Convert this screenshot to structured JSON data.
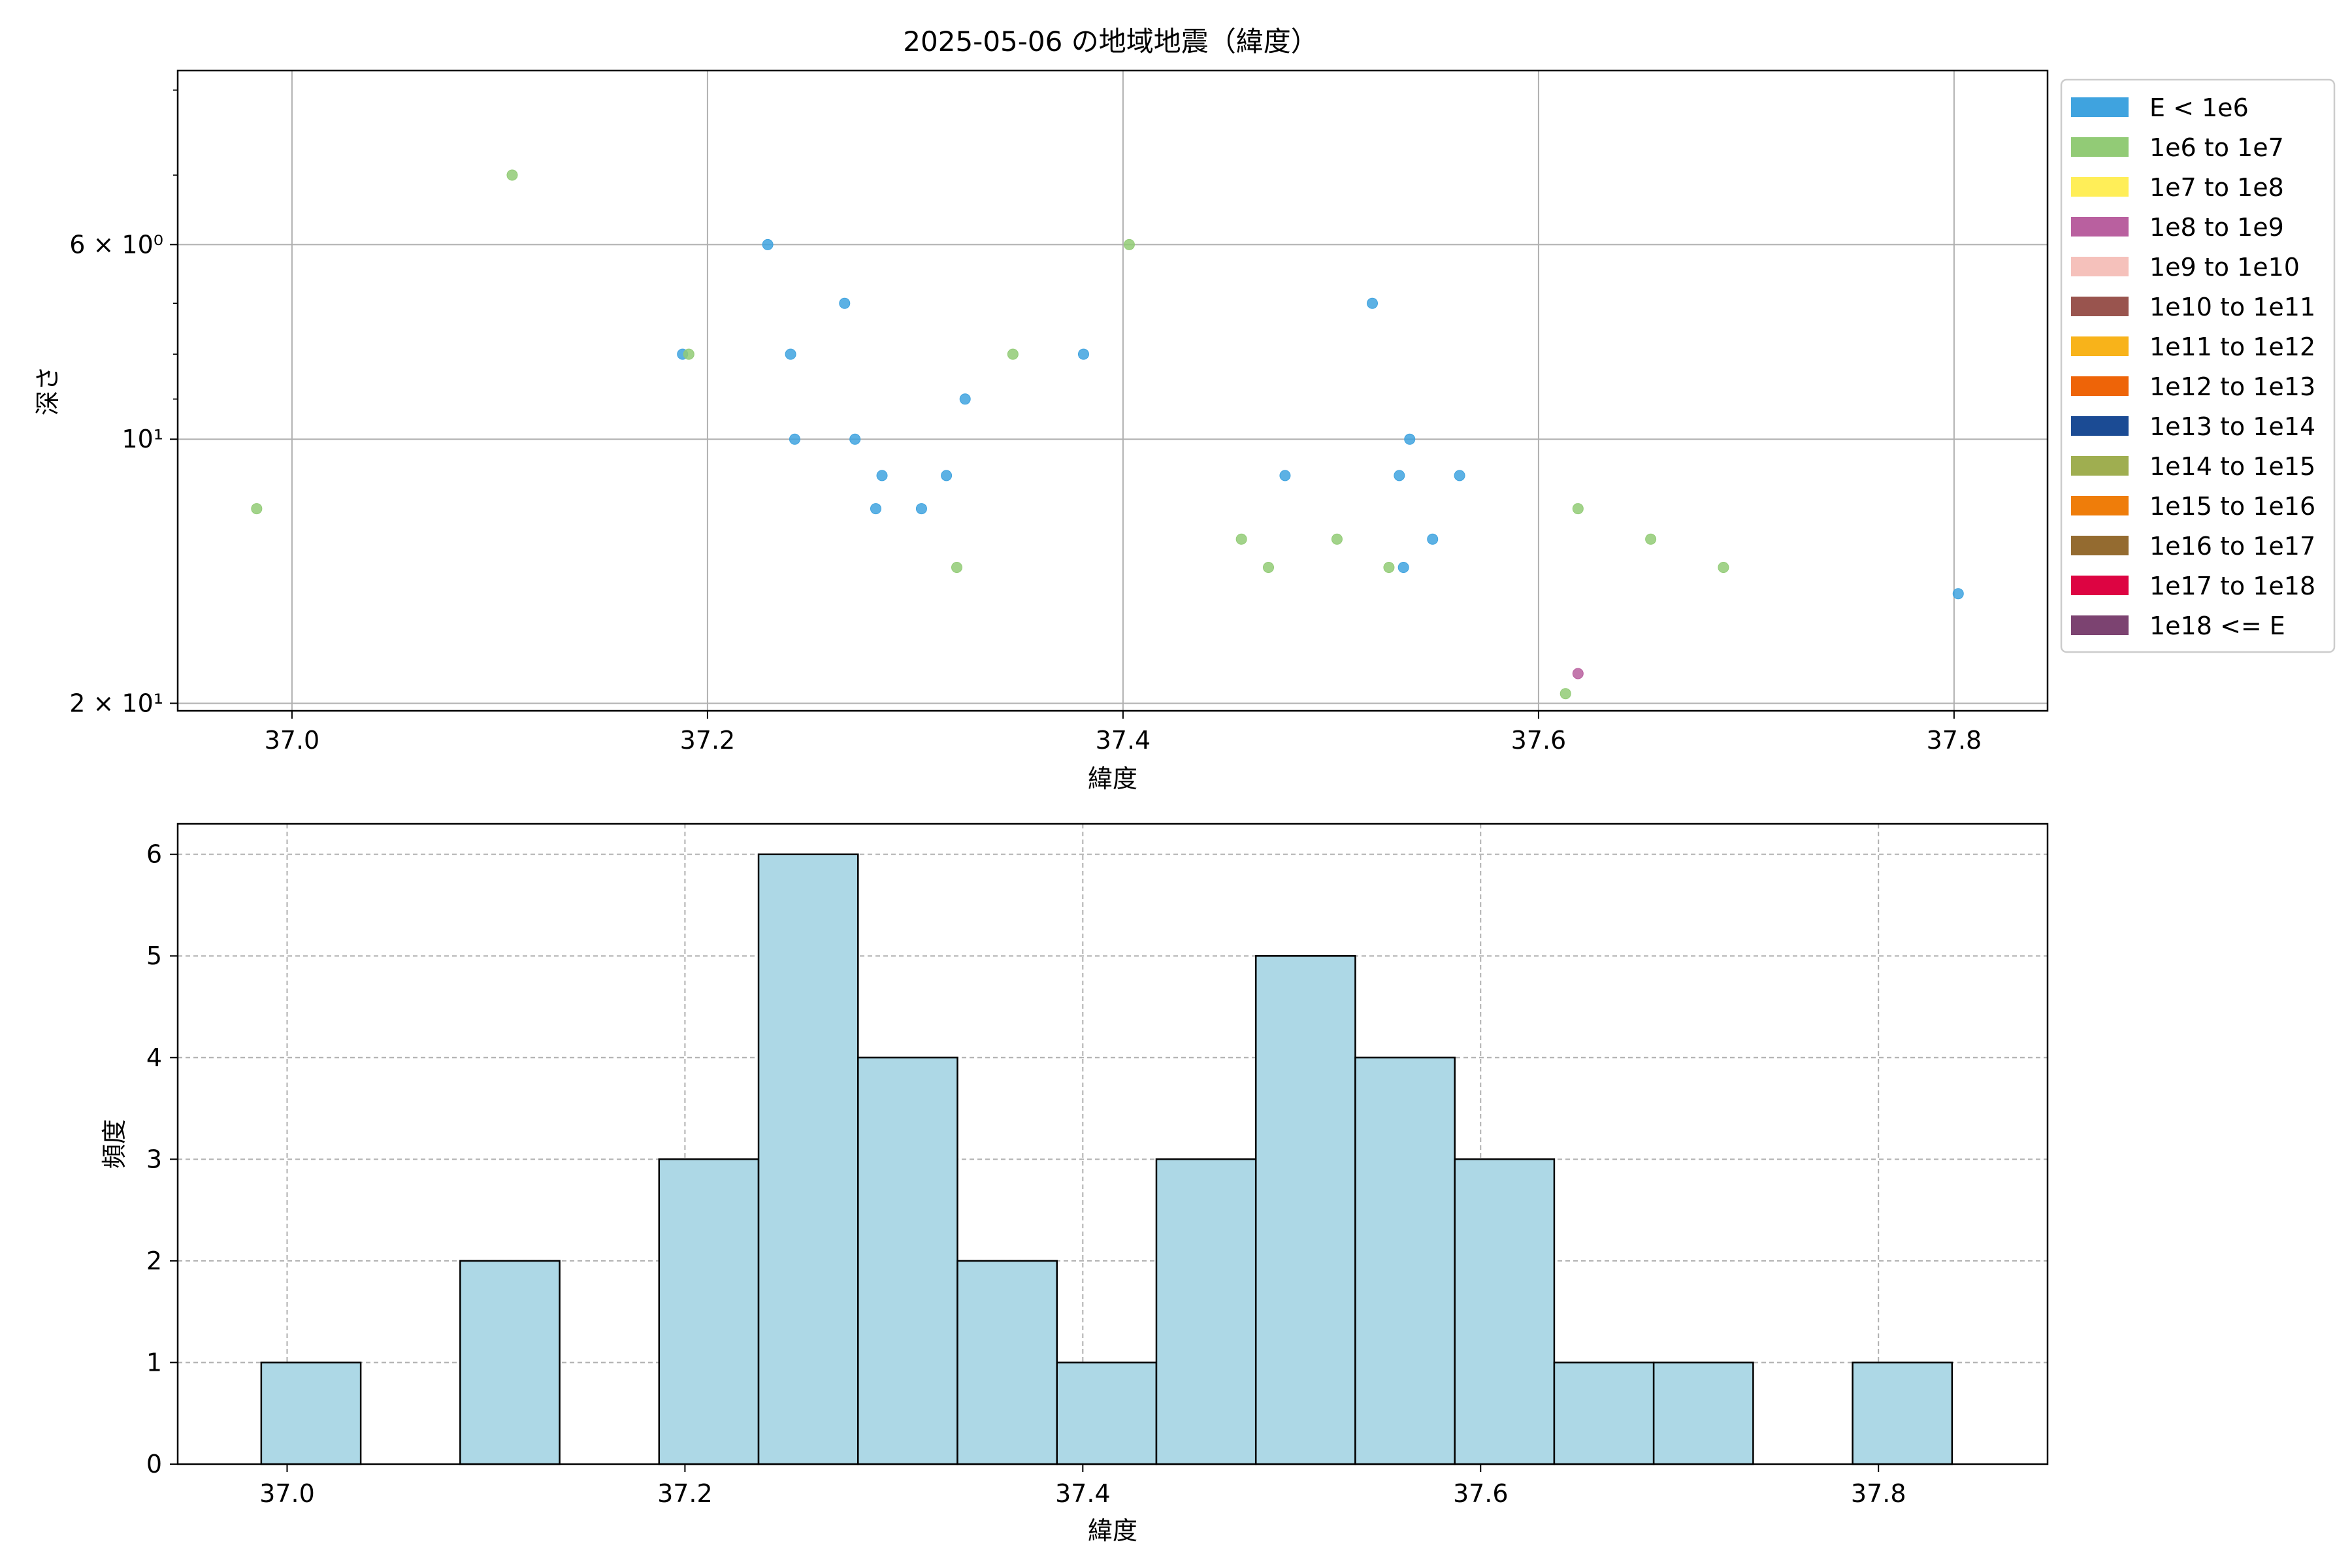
{
  "chart_data": [
    {
      "type": "scatter",
      "title": "2025-05-06 の地域地震（緯度）",
      "xlabel": "緯度",
      "ylabel": "深さ",
      "xlim": [
        36.945,
        37.845
      ],
      "ylim": [
        20.4,
        3.8
      ],
      "y_scale": "log",
      "y_inverted": true,
      "grid": true,
      "x_ticks": [
        37.0,
        37.2,
        37.4,
        37.6,
        37.8
      ],
      "x_tick_labels": [
        "37.0",
        "37.2",
        "37.4",
        "37.6",
        "37.8"
      ],
      "y_ticks": [
        6,
        10,
        20
      ],
      "y_tick_labels": [
        "6 × 10⁰",
        "10¹",
        "2 × 10¹"
      ],
      "legend": {
        "placement": "outside-right",
        "entries": [
          {
            "label": "E < 1e6",
            "color": "#3fa3df"
          },
          {
            "label": "1e6 to 1e7",
            "color": "#92cb76"
          },
          {
            "label": "1e7 to 1e8",
            "color": "#ffee58"
          },
          {
            "label": "1e8 to 1e9",
            "color": "#b9609f"
          },
          {
            "label": "1e9 to 1e10",
            "color": "#f5c1bb"
          },
          {
            "label": "1e10 to 1e11",
            "color": "#99544e"
          },
          {
            "label": "1e11 to 1e12",
            "color": "#f8b31a"
          },
          {
            "label": "1e12 to 1e13",
            "color": "#ee6408"
          },
          {
            "label": "1e13 to 1e14",
            "color": "#1b4b94"
          },
          {
            "label": "1e14 to 1e15",
            "color": "#9fae50"
          },
          {
            "label": "1e15 to 1e16",
            "color": "#ef7d0a"
          },
          {
            "label": "1e16 to 1e17",
            "color": "#946b30"
          },
          {
            "label": "1e17 to 1e18",
            "color": "#dd0442"
          },
          {
            "label": "1e18 <= E",
            "color": "#7c4371"
          }
        ]
      },
      "series": [
        {
          "category": 0,
          "points": [
            {
              "x": 37.188,
              "y": 8
            },
            {
              "x": 37.229,
              "y": 6
            },
            {
              "x": 37.24,
              "y": 8
            },
            {
              "x": 37.242,
              "y": 10
            },
            {
              "x": 37.266,
              "y": 7
            },
            {
              "x": 37.271,
              "y": 10
            },
            {
              "x": 37.281,
              "y": 12
            },
            {
              "x": 37.284,
              "y": 11
            },
            {
              "x": 37.303,
              "y": 12
            },
            {
              "x": 37.315,
              "y": 11
            },
            {
              "x": 37.324,
              "y": 9
            },
            {
              "x": 37.381,
              "y": 8
            },
            {
              "x": 37.478,
              "y": 11
            },
            {
              "x": 37.52,
              "y": 7
            },
            {
              "x": 37.533,
              "y": 11
            },
            {
              "x": 37.535,
              "y": 14
            },
            {
              "x": 37.538,
              "y": 10
            },
            {
              "x": 37.549,
              "y": 13
            },
            {
              "x": 37.562,
              "y": 11
            },
            {
              "x": 37.802,
              "y": 15
            }
          ]
        },
        {
          "category": 1,
          "points": [
            {
              "x": 36.983,
              "y": 12
            },
            {
              "x": 37.106,
              "y": 5
            },
            {
              "x": 37.191,
              "y": 8
            },
            {
              "x": 37.32,
              "y": 14
            },
            {
              "x": 37.347,
              "y": 8
            },
            {
              "x": 37.403,
              "y": 6
            },
            {
              "x": 37.457,
              "y": 13
            },
            {
              "x": 37.47,
              "y": 14
            },
            {
              "x": 37.503,
              "y": 13
            },
            {
              "x": 37.528,
              "y": 14
            },
            {
              "x": 37.613,
              "y": 19.5
            },
            {
              "x": 37.619,
              "y": 12
            },
            {
              "x": 37.654,
              "y": 13
            },
            {
              "x": 37.689,
              "y": 14
            }
          ]
        },
        {
          "category": 3,
          "points": [
            {
              "x": 37.619,
              "y": 18.5
            }
          ]
        }
      ]
    },
    {
      "type": "bar",
      "title": "",
      "xlabel": "緯度",
      "ylabel": "頻度",
      "xlim": [
        36.945,
        37.885
      ],
      "ylim": [
        0,
        6.3
      ],
      "grid": true,
      "x_ticks": [
        37.0,
        37.2,
        37.4,
        37.6,
        37.8
      ],
      "x_tick_labels": [
        "37.0",
        "37.2",
        "37.4",
        "37.6",
        "37.8"
      ],
      "y_ticks": [
        0,
        1,
        2,
        3,
        4,
        5,
        6
      ],
      "y_tick_labels": [
        "0",
        "1",
        "2",
        "3",
        "4",
        "5",
        "6"
      ],
      "bar_color": "#add8e6",
      "bin_start": 36.987,
      "bin_width": 0.05,
      "values": [
        1,
        0,
        2,
        0,
        3,
        6,
        4,
        2,
        1,
        3,
        5,
        4,
        3,
        1,
        1,
        0,
        1
      ]
    }
  ]
}
